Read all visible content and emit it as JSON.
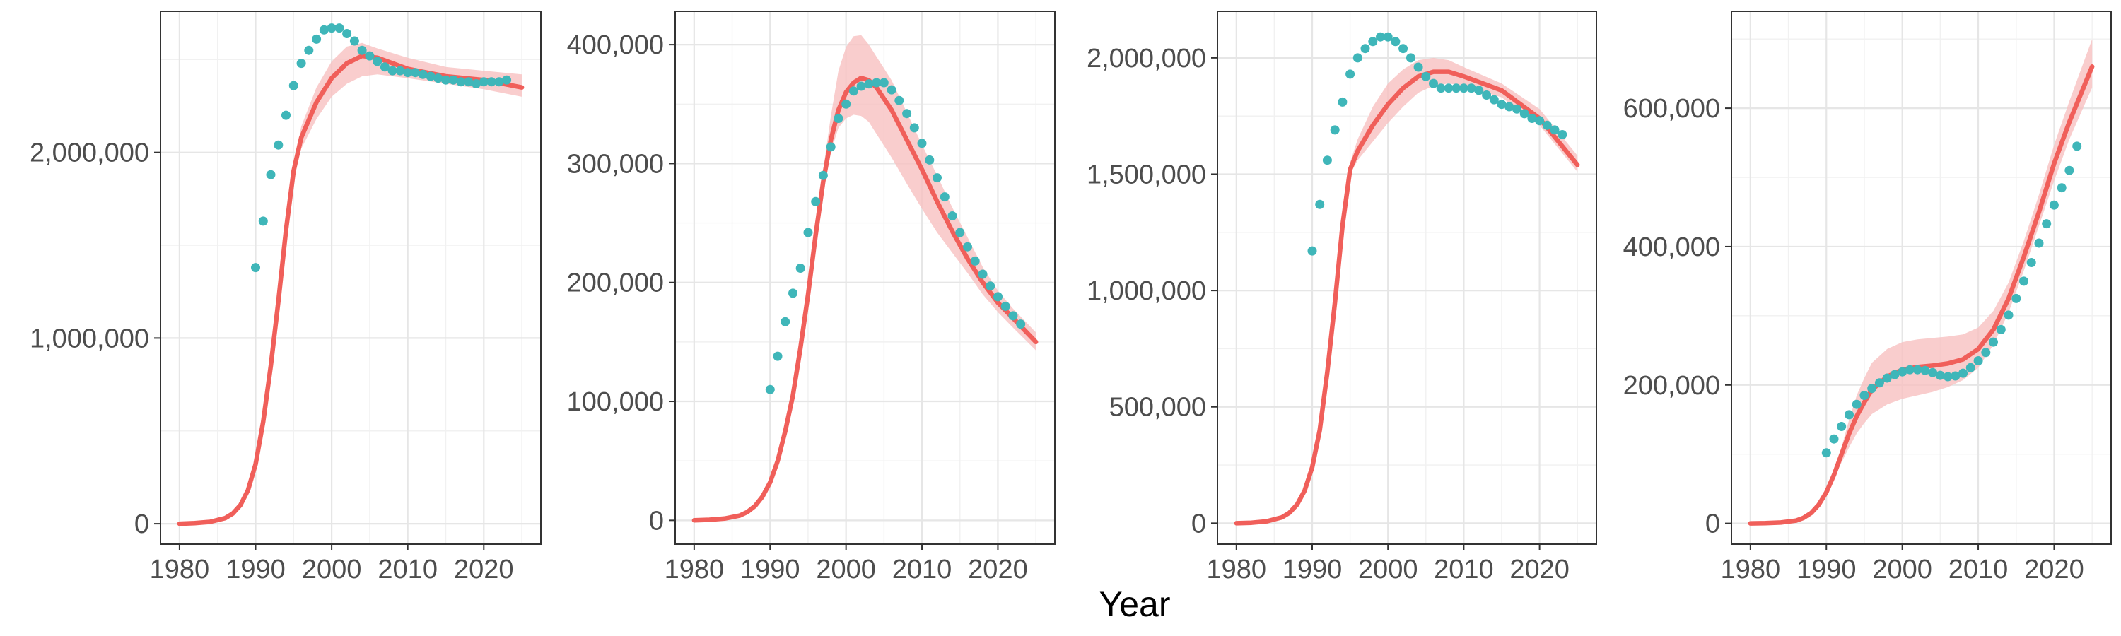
{
  "colors": {
    "model_line": "#f05f5a",
    "model_band": "#f8c0c0",
    "observed_points": "#3fb6b9",
    "grid_major": "#e6e6e6",
    "panel_border": "#333333"
  },
  "shared": {
    "xlabel": "Year",
    "x_ticks": [
      1980,
      1990,
      2000,
      2010,
      2020
    ],
    "xlim": [
      1977.5,
      2027.5
    ]
  },
  "chart_data": [
    {
      "type": "line",
      "title": "",
      "xlabel": "",
      "ylabel": "",
      "ylim": [
        -110000,
        2760000
      ],
      "y_ticks": [
        0,
        1000000,
        2000000
      ],
      "y_tick_labels": [
        "0",
        "1,000,000",
        "2,000,000"
      ],
      "grid": true,
      "series": [
        {
          "kind": "line_with_band",
          "x": [
            1980,
            1982,
            1984,
            1986,
            1987,
            1988,
            1989,
            1990,
            1991,
            1992,
            1993,
            1994,
            1995,
            1996,
            1998,
            2000,
            2002,
            2004,
            2006,
            2010,
            2015,
            2020,
            2025
          ],
          "y": [
            0,
            3000,
            10000,
            30000,
            55000,
            100000,
            180000,
            320000,
            550000,
            850000,
            1200000,
            1580000,
            1900000,
            2080000,
            2270000,
            2400000,
            2480000,
            2520000,
            2510000,
            2450000,
            2410000,
            2390000,
            2350000
          ],
          "lower": [
            0,
            3000,
            10000,
            30000,
            55000,
            100000,
            180000,
            320000,
            550000,
            850000,
            1200000,
            1580000,
            1880000,
            2020000,
            2180000,
            2300000,
            2370000,
            2410000,
            2420000,
            2400000,
            2370000,
            2340000,
            2300000
          ],
          "upper": [
            0,
            3000,
            10000,
            30000,
            55000,
            100000,
            180000,
            320000,
            550000,
            850000,
            1200000,
            1590000,
            1920000,
            2140000,
            2350000,
            2490000,
            2570000,
            2590000,
            2560000,
            2510000,
            2460000,
            2440000,
            2420000
          ]
        },
        {
          "kind": "points",
          "x": [
            1990,
            1991,
            1992,
            1993,
            1994,
            1995,
            1996,
            1997,
            1998,
            1999,
            2000,
            2001,
            2002,
            2003,
            2004,
            2005,
            2006,
            2007,
            2008,
            2009,
            2010,
            2011,
            2012,
            2013,
            2014,
            2015,
            2016,
            2017,
            2018,
            2019,
            2020,
            2021,
            2022,
            2023
          ],
          "y": [
            1380000,
            1630000,
            1880000,
            2040000,
            2200000,
            2360000,
            2480000,
            2550000,
            2610000,
            2660000,
            2670000,
            2670000,
            2640000,
            2600000,
            2550000,
            2520000,
            2490000,
            2460000,
            2440000,
            2440000,
            2430000,
            2430000,
            2420000,
            2410000,
            2400000,
            2390000,
            2390000,
            2380000,
            2380000,
            2370000,
            2380000,
            2380000,
            2380000,
            2390000
          ]
        }
      ]
    },
    {
      "type": "line",
      "title": "",
      "xlabel": "",
      "ylabel": "",
      "ylim": [
        -20000,
        428000
      ],
      "y_ticks": [
        0,
        100000,
        200000,
        300000,
        400000
      ],
      "y_tick_labels": [
        "0",
        "100,000",
        "200,000",
        "300,000",
        "400,000"
      ],
      "grid": true,
      "series": [
        {
          "kind": "line_with_band",
          "x": [
            1980,
            1982,
            1984,
            1986,
            1987,
            1988,
            1989,
            1990,
            1991,
            1992,
            1993,
            1994,
            1995,
            1996,
            1997,
            1998,
            1999,
            2000,
            2001,
            2002,
            2003,
            2004,
            2006,
            2008,
            2010,
            2012,
            2014,
            2016,
            2018,
            2020,
            2022,
            2025
          ],
          "y": [
            0,
            500,
            1500,
            4000,
            7000,
            12000,
            20000,
            32000,
            50000,
            75000,
            105000,
            145000,
            190000,
            240000,
            285000,
            320000,
            345000,
            360000,
            368000,
            372000,
            370000,
            364000,
            345000,
            320000,
            295000,
            268000,
            243000,
            220000,
            200000,
            183000,
            170000,
            150000
          ],
          "lower": [
            0,
            500,
            1500,
            4000,
            7000,
            12000,
            20000,
            32000,
            50000,
            75000,
            105000,
            145000,
            190000,
            240000,
            280000,
            310000,
            330000,
            338000,
            341000,
            340000,
            335000,
            325000,
            305000,
            283000,
            262000,
            242000,
            225000,
            208000,
            190000,
            175000,
            162000,
            143000
          ],
          "upper": [
            0,
            500,
            1500,
            4000,
            7000,
            12000,
            20000,
            32000,
            50000,
            75000,
            105000,
            145000,
            190000,
            240000,
            295000,
            340000,
            378000,
            398000,
            407000,
            408000,
            400000,
            390000,
            370000,
            343000,
            316000,
            290000,
            263000,
            238000,
            213000,
            193000,
            178000,
            158000
          ]
        },
        {
          "kind": "points",
          "x": [
            1990,
            1991,
            1992,
            1993,
            1994,
            1995,
            1996,
            1997,
            1998,
            1999,
            2000,
            2001,
            2002,
            2003,
            2004,
            2005,
            2006,
            2007,
            2008,
            2009,
            2010,
            2011,
            2012,
            2013,
            2014,
            2015,
            2016,
            2017,
            2018,
            2019,
            2020,
            2021,
            2022,
            2023
          ],
          "y": [
            110000,
            138000,
            167000,
            191000,
            212000,
            242000,
            268000,
            290000,
            314000,
            338000,
            350000,
            361000,
            365000,
            367000,
            368000,
            368000,
            362000,
            353000,
            342000,
            330000,
            317000,
            303000,
            288000,
            272000,
            256000,
            242000,
            230000,
            218000,
            207000,
            197000,
            188000,
            180000,
            172000,
            165000
          ]
        }
      ]
    },
    {
      "type": "line",
      "title": "",
      "xlabel": "",
      "ylabel": "",
      "ylim": [
        -90000,
        2200000
      ],
      "y_ticks": [
        0,
        500000,
        1000000,
        1500000,
        2000000
      ],
      "y_tick_labels": [
        "0",
        "500,000",
        "1,000,000",
        "1,500,000",
        "2,000,000"
      ],
      "grid": true,
      "series": [
        {
          "kind": "line_with_band",
          "x": [
            1980,
            1982,
            1984,
            1986,
            1987,
            1988,
            1989,
            1990,
            1991,
            1992,
            1993,
            1994,
            1995,
            1996,
            1998,
            2000,
            2002,
            2004,
            2006,
            2008,
            2010,
            2015,
            2020,
            2025
          ],
          "y": [
            0,
            2000,
            8000,
            25000,
            45000,
            80000,
            140000,
            240000,
            400000,
            650000,
            950000,
            1280000,
            1520000,
            1600000,
            1710000,
            1800000,
            1870000,
            1920000,
            1940000,
            1940000,
            1920000,
            1860000,
            1740000,
            1540000
          ],
          "lower": [
            0,
            2000,
            8000,
            25000,
            45000,
            80000,
            140000,
            240000,
            400000,
            650000,
            950000,
            1280000,
            1500000,
            1560000,
            1640000,
            1720000,
            1790000,
            1850000,
            1880000,
            1890000,
            1880000,
            1830000,
            1710000,
            1510000
          ],
          "upper": [
            0,
            2000,
            8000,
            25000,
            45000,
            80000,
            140000,
            240000,
            400000,
            650000,
            950000,
            1290000,
            1550000,
            1650000,
            1790000,
            1890000,
            1950000,
            1990000,
            2000000,
            1990000,
            1960000,
            1890000,
            1780000,
            1580000
          ]
        },
        {
          "kind": "points",
          "x": [
            1990,
            1991,
            1992,
            1993,
            1994,
            1995,
            1996,
            1997,
            1998,
            1999,
            2000,
            2001,
            2002,
            2003,
            2004,
            2005,
            2006,
            2007,
            2008,
            2009,
            2010,
            2011,
            2012,
            2013,
            2014,
            2015,
            2016,
            2017,
            2018,
            2019,
            2020,
            2021,
            2022,
            2023
          ],
          "y": [
            1170000,
            1370000,
            1560000,
            1690000,
            1810000,
            1930000,
            2000000,
            2040000,
            2070000,
            2090000,
            2090000,
            2070000,
            2040000,
            2000000,
            1960000,
            1920000,
            1890000,
            1870000,
            1870000,
            1870000,
            1870000,
            1870000,
            1860000,
            1840000,
            1820000,
            1800000,
            1790000,
            1780000,
            1760000,
            1740000,
            1730000,
            1710000,
            1690000,
            1670000
          ]
        }
      ]
    },
    {
      "type": "line",
      "title": "",
      "xlabel": "",
      "ylabel": "",
      "ylim": [
        -30000,
        740000
      ],
      "y_ticks": [
        0,
        200000,
        400000,
        600000
      ],
      "y_tick_labels": [
        "0",
        "200,000",
        "400,000",
        "600,000"
      ],
      "grid": true,
      "series": [
        {
          "kind": "line_with_band",
          "x": [
            1980,
            1982,
            1984,
            1986,
            1987,
            1988,
            1989,
            1990,
            1991,
            1992,
            1993,
            1994,
            1995,
            1996,
            1998,
            2000,
            2002,
            2004,
            2006,
            2008,
            2010,
            2012,
            2014,
            2016,
            2018,
            2020,
            2022,
            2025
          ],
          "y": [
            0,
            300,
            1200,
            4000,
            8000,
            15000,
            27000,
            45000,
            70000,
            100000,
            130000,
            155000,
            175000,
            193000,
            212000,
            222000,
            226000,
            228000,
            231000,
            237000,
            252000,
            280000,
            325000,
            385000,
            450000,
            520000,
            580000,
            660000
          ],
          "lower": [
            0,
            300,
            1200,
            4000,
            8000,
            15000,
            27000,
            45000,
            65000,
            88000,
            110000,
            130000,
            145000,
            158000,
            172000,
            180000,
            185000,
            190000,
            197000,
            207000,
            225000,
            258000,
            305000,
            365000,
            430000,
            495000,
            555000,
            630000
          ],
          "upper": [
            0,
            300,
            1200,
            4000,
            8000,
            15000,
            27000,
            45000,
            75000,
            110000,
            150000,
            185000,
            210000,
            232000,
            252000,
            262000,
            266000,
            268000,
            270000,
            273000,
            283000,
            307000,
            348000,
            408000,
            475000,
            547000,
            610000,
            700000
          ]
        },
        {
          "kind": "points",
          "x": [
            1990,
            1991,
            1992,
            1993,
            1994,
            1995,
            1996,
            1997,
            1998,
            1999,
            2000,
            2001,
            2002,
            2003,
            2004,
            2005,
            2006,
            2007,
            2008,
            2009,
            2010,
            2011,
            2012,
            2013,
            2014,
            2015,
            2016,
            2017,
            2018,
            2019,
            2020,
            2021,
            2022,
            2023
          ],
          "y": [
            102000,
            122000,
            140000,
            157000,
            172000,
            185000,
            195000,
            203000,
            210000,
            215000,
            219000,
            222000,
            222000,
            221000,
            218000,
            214000,
            212000,
            213000,
            217000,
            225000,
            235000,
            247000,
            262000,
            280000,
            301000,
            325000,
            350000,
            377000,
            405000,
            433000,
            460000,
            485000,
            510000,
            545000
          ]
        }
      ]
    }
  ]
}
